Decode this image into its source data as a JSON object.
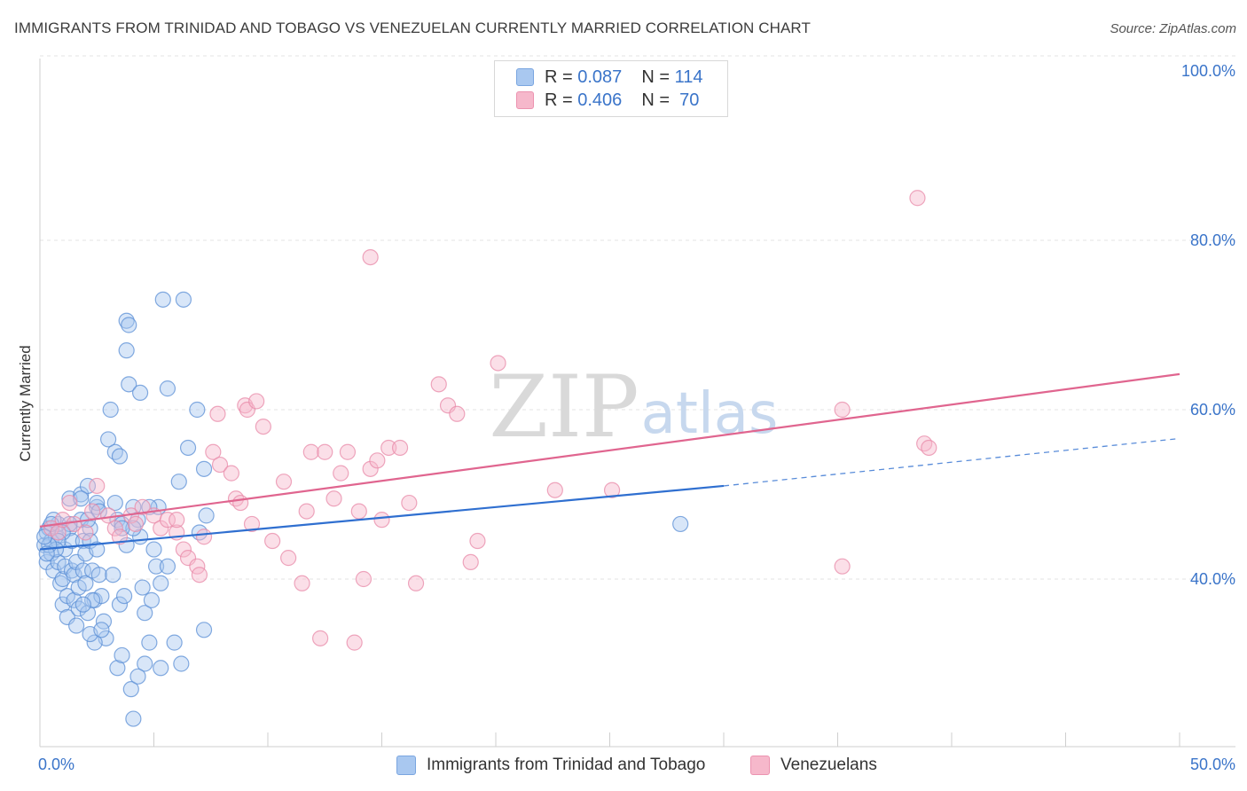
{
  "title": "IMMIGRANTS FROM TRINIDAD AND TOBAGO VS VENEZUELAN CURRENTLY MARRIED CORRELATION CHART",
  "source": "Source: ZipAtlas.com",
  "watermark": {
    "zip": "ZIP",
    "atlas": "atlas"
  },
  "legend": {
    "rows": [
      {
        "r_label": "R =",
        "r_value": "0.087",
        "n_label": "N =",
        "n_value": "114",
        "color": "#a9c8f0"
      },
      {
        "r_label": "R =",
        "r_value": "0.406",
        "n_label": "N =",
        "n_value": "70",
        "color": "#f6b8cb"
      }
    ]
  },
  "bottom_legend": {
    "series1": "Immigrants from Trinidad and Tobago",
    "series2": "Venezuelans"
  },
  "chart_data": {
    "type": "scatter",
    "xlabel": "",
    "ylabel": "Currently Married",
    "xlim": [
      0,
      50
    ],
    "ylim": [
      20,
      102
    ],
    "x_tick_labels": [
      "0.0%",
      "50.0%"
    ],
    "y_ticks": [
      40,
      60,
      80,
      100
    ],
    "y_tick_labels": [
      "40.0%",
      "60.0%",
      "80.0%",
      "100.0%"
    ],
    "grid": true,
    "series": [
      {
        "name": "Immigrants from Trinidad and Tobago",
        "color": "#5b8fd6",
        "fill": "#a9c8f0",
        "trend": {
          "x0": 0,
          "y0": 43.5,
          "x1": 30,
          "y1": 51.0,
          "dash_x1": 50,
          "dash_y1": 56.6,
          "color": "#2f6fd0"
        },
        "points": [
          [
            0.2,
            44
          ],
          [
            0.3,
            45.5
          ],
          [
            0.3,
            42
          ],
          [
            0.4,
            46
          ],
          [
            0.5,
            44.5
          ],
          [
            0.5,
            43
          ],
          [
            0.6,
            41
          ],
          [
            0.7,
            45
          ],
          [
            0.8,
            46.5
          ],
          [
            0.8,
            42
          ],
          [
            0.9,
            39.5
          ],
          [
            1,
            40
          ],
          [
            1,
            37
          ],
          [
            1.1,
            43.5
          ],
          [
            1.1,
            41.5
          ],
          [
            1.2,
            38
          ],
          [
            1.2,
            35.5
          ],
          [
            1.3,
            49.5
          ],
          [
            1.3,
            46
          ],
          [
            1.4,
            44.5
          ],
          [
            1.4,
            41
          ],
          [
            1.5,
            40.5
          ],
          [
            1.5,
            37.5
          ],
          [
            1.6,
            42
          ],
          [
            1.7,
            39
          ],
          [
            1.7,
            36.5
          ],
          [
            1.8,
            50
          ],
          [
            1.8,
            47
          ],
          [
            1.9,
            44.5
          ],
          [
            1.9,
            41
          ],
          [
            2,
            43
          ],
          [
            2,
            39.5
          ],
          [
            2.1,
            36
          ],
          [
            2.2,
            46
          ],
          [
            2.2,
            44.5
          ],
          [
            2.3,
            41
          ],
          [
            2.4,
            37.5
          ],
          [
            2.5,
            48.5
          ],
          [
            2.5,
            43.5
          ],
          [
            2.6,
            40.5
          ],
          [
            2.7,
            38
          ],
          [
            2.8,
            35
          ],
          [
            2.9,
            33
          ],
          [
            2.1,
            51
          ],
          [
            2.4,
            32.5
          ],
          [
            2.2,
            33.5
          ],
          [
            2.5,
            49
          ],
          [
            3.1,
            60
          ],
          [
            3,
            56.5
          ],
          [
            3.2,
            40.5
          ],
          [
            3.3,
            55
          ],
          [
            3.5,
            54.5
          ],
          [
            3.4,
            29.5
          ],
          [
            3.6,
            31
          ],
          [
            3.5,
            37
          ],
          [
            3.7,
            38
          ],
          [
            3.8,
            67
          ],
          [
            3.9,
            63
          ],
          [
            3.8,
            70.5
          ],
          [
            3.9,
            70
          ],
          [
            3.3,
            49
          ],
          [
            3.4,
            47
          ],
          [
            4.4,
            62
          ],
          [
            4.0,
            27
          ],
          [
            3.6,
            46.5
          ],
          [
            3.8,
            44
          ],
          [
            4.1,
            48.5
          ],
          [
            4.3,
            47
          ],
          [
            4.4,
            45
          ],
          [
            4.5,
            39
          ],
          [
            4.6,
            30
          ],
          [
            4.6,
            36
          ],
          [
            4.8,
            32.5
          ],
          [
            4.9,
            37.5
          ],
          [
            5,
            43.5
          ],
          [
            5.1,
            41.5
          ],
          [
            5.3,
            29.5
          ],
          [
            5.3,
            39.5
          ],
          [
            5.6,
            41.5
          ],
          [
            5.6,
            62.5
          ],
          [
            4.3,
            28.5
          ],
          [
            5.9,
            32.5
          ],
          [
            4.1,
            23.5
          ],
          [
            6.2,
            30
          ],
          [
            6.1,
            51.5
          ],
          [
            6.5,
            55.5
          ],
          [
            6.9,
            60
          ],
          [
            7.2,
            53
          ],
          [
            7.3,
            47.5
          ],
          [
            7.0,
            45.5
          ],
          [
            7.2,
            34
          ],
          [
            6.3,
            73
          ],
          [
            5.4,
            73
          ],
          [
            5.2,
            48.5
          ],
          [
            4.8,
            48.5
          ],
          [
            4.1,
            46
          ],
          [
            3.6,
            46
          ],
          [
            2.6,
            48
          ],
          [
            2.1,
            47
          ],
          [
            1.8,
            49.5
          ],
          [
            1.3,
            46.5
          ],
          [
            1.0,
            45.5
          ],
          [
            0.8,
            44.5
          ],
          [
            0.7,
            43.5
          ],
          [
            0.6,
            47
          ],
          [
            0.5,
            46.5
          ],
          [
            0.4,
            44
          ],
          [
            0.3,
            43
          ],
          [
            0.2,
            45
          ],
          [
            28.1,
            46.5
          ],
          [
            2.3,
            37.5
          ],
          [
            1.9,
            37
          ],
          [
            1.6,
            34.5
          ],
          [
            2.7,
            34
          ]
        ]
      },
      {
        "name": "Venezuelans",
        "color": "#e88aa8",
        "fill": "#f6b8cb",
        "trend": {
          "x0": 0,
          "y0": 46.2,
          "x1": 50,
          "y1": 64.2,
          "color": "#e0658f"
        },
        "points": [
          [
            0.5,
            46
          ],
          [
            0.8,
            45.5
          ],
          [
            1,
            47
          ],
          [
            1.3,
            49
          ],
          [
            1.5,
            46.5
          ],
          [
            2,
            45.5
          ],
          [
            2.3,
            48
          ],
          [
            2.5,
            51
          ],
          [
            3,
            47.5
          ],
          [
            3.3,
            46
          ],
          [
            3.5,
            45
          ],
          [
            4,
            47.5
          ],
          [
            4.2,
            46.5
          ],
          [
            4.5,
            48.5
          ],
          [
            5,
            47.5
          ],
          [
            5.3,
            46
          ],
          [
            5.6,
            47
          ],
          [
            6,
            45.5
          ],
          [
            6.3,
            43.5
          ],
          [
            6.5,
            42.5
          ],
          [
            6.9,
            41.5
          ],
          [
            7,
            40.5
          ],
          [
            7.2,
            45
          ],
          [
            7.6,
            55
          ],
          [
            7.8,
            59.5
          ],
          [
            7.9,
            53.5
          ],
          [
            8.4,
            52.5
          ],
          [
            8.6,
            49.5
          ],
          [
            8.8,
            49
          ],
          [
            9,
            60.5
          ],
          [
            9.1,
            60
          ],
          [
            9.3,
            46.5
          ],
          [
            9.5,
            61
          ],
          [
            9.8,
            58
          ],
          [
            10.2,
            44.5
          ],
          [
            10.7,
            51.5
          ],
          [
            10.9,
            42.5
          ],
          [
            11.5,
            39.5
          ],
          [
            11.9,
            55
          ],
          [
            11.7,
            48
          ],
          [
            12.3,
            33
          ],
          [
            12.5,
            55
          ],
          [
            12.9,
            49.5
          ],
          [
            13.2,
            52.5
          ],
          [
            13.5,
            55
          ],
          [
            14,
            48
          ],
          [
            14.2,
            40
          ],
          [
            14.5,
            53
          ],
          [
            14.8,
            54
          ],
          [
            15,
            47
          ],
          [
            15.3,
            55.5
          ],
          [
            15.8,
            55.5
          ],
          [
            16.2,
            49
          ],
          [
            16.5,
            39.5
          ],
          [
            17.5,
            63
          ],
          [
            17.9,
            60.5
          ],
          [
            18.3,
            59.5
          ],
          [
            18.9,
            42
          ],
          [
            19.2,
            44.5
          ],
          [
            20.1,
            65.5
          ],
          [
            22.6,
            50.5
          ],
          [
            25.1,
            50.5
          ],
          [
            35.2,
            41.5
          ],
          [
            35.2,
            60
          ],
          [
            38.8,
            56
          ],
          [
            39,
            55.5
          ],
          [
            38.5,
            85
          ],
          [
            14.5,
            78
          ],
          [
            13.8,
            32.5
          ],
          [
            6.0,
            47
          ]
        ]
      }
    ]
  }
}
